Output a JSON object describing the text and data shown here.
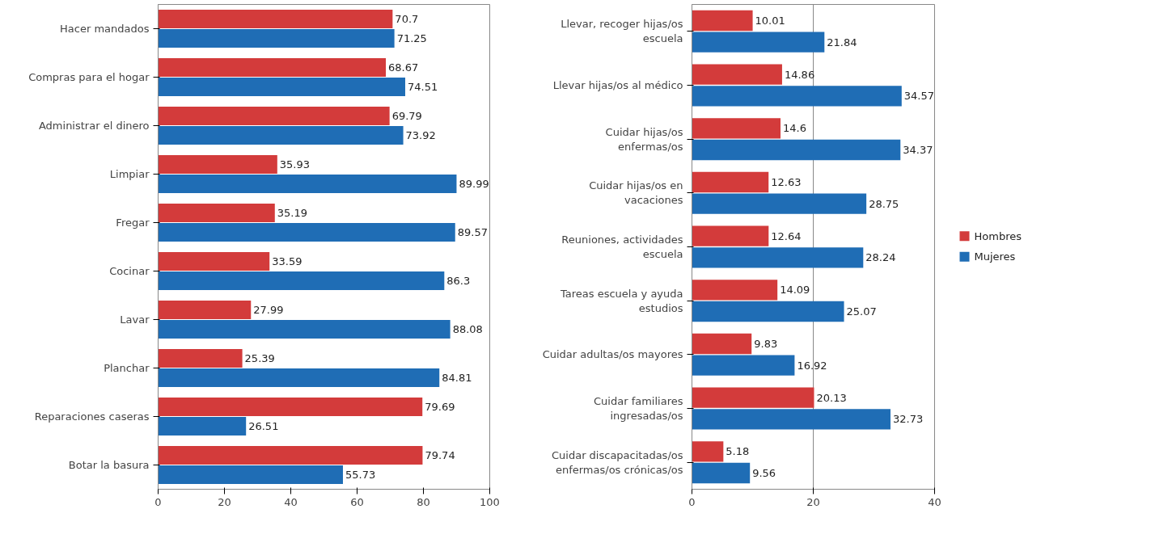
{
  "chart_data": [
    {
      "type": "bar",
      "orientation": "horizontal",
      "categories": [
        "Hacer mandados",
        "Compras para el hogar",
        "Administrar el dinero",
        "Limpiar",
        "Fregar",
        "Cocinar",
        "Lavar",
        "Planchar",
        "Reparaciones caseras",
        "Botar la basura"
      ],
      "series": [
        {
          "color": "#d33b3b",
          "values": [
            70.7,
            68.67,
            69.79,
            35.93,
            35.19,
            33.59,
            27.99,
            25.39,
            79.69,
            79.74
          ]
        },
        {
          "color": "#1f6db5",
          "values": [
            71.25,
            74.51,
            73.92,
            89.99,
            89.57,
            86.3,
            88.08,
            84.81,
            26.51,
            55.73
          ]
        }
      ],
      "xlim": [
        0,
        100
      ],
      "xticks": [
        0,
        20,
        40,
        60,
        80,
        100
      ],
      "data_labels": true,
      "grid": false
    },
    {
      "type": "bar",
      "orientation": "horizontal",
      "categories": [
        "Llevar, recoger hijas/os escuela",
        "Llevar hijas/os al médico",
        "Cuidar hijas/os enfermas/os",
        "Cuidar hijas/os en vacaciones",
        "Reuniones, actividades escuela",
        "Tareas escuela y ayuda estudios",
        "Cuidar adultas/os mayores",
        "Cuidar familiares ingresadas/os",
        "Cuidar discapacitadas/os enfermas/os crónicas/os"
      ],
      "series": [
        {
          "name": "Hombres",
          "color": "#d33b3b",
          "values": [
            10.01,
            14.86,
            14.6,
            12.63,
            12.64,
            14.09,
            9.83,
            20.13,
            5.18
          ]
        },
        {
          "name": "Mujeres",
          "color": "#1f6db5",
          "values": [
            21.84,
            34.57,
            34.37,
            28.75,
            28.24,
            25.07,
            16.92,
            32.73,
            9.56
          ]
        }
      ],
      "xlim": [
        0,
        40
      ],
      "xticks": [
        0,
        20,
        40
      ],
      "data_labels": true,
      "grid": "x",
      "legend": "right"
    }
  ]
}
